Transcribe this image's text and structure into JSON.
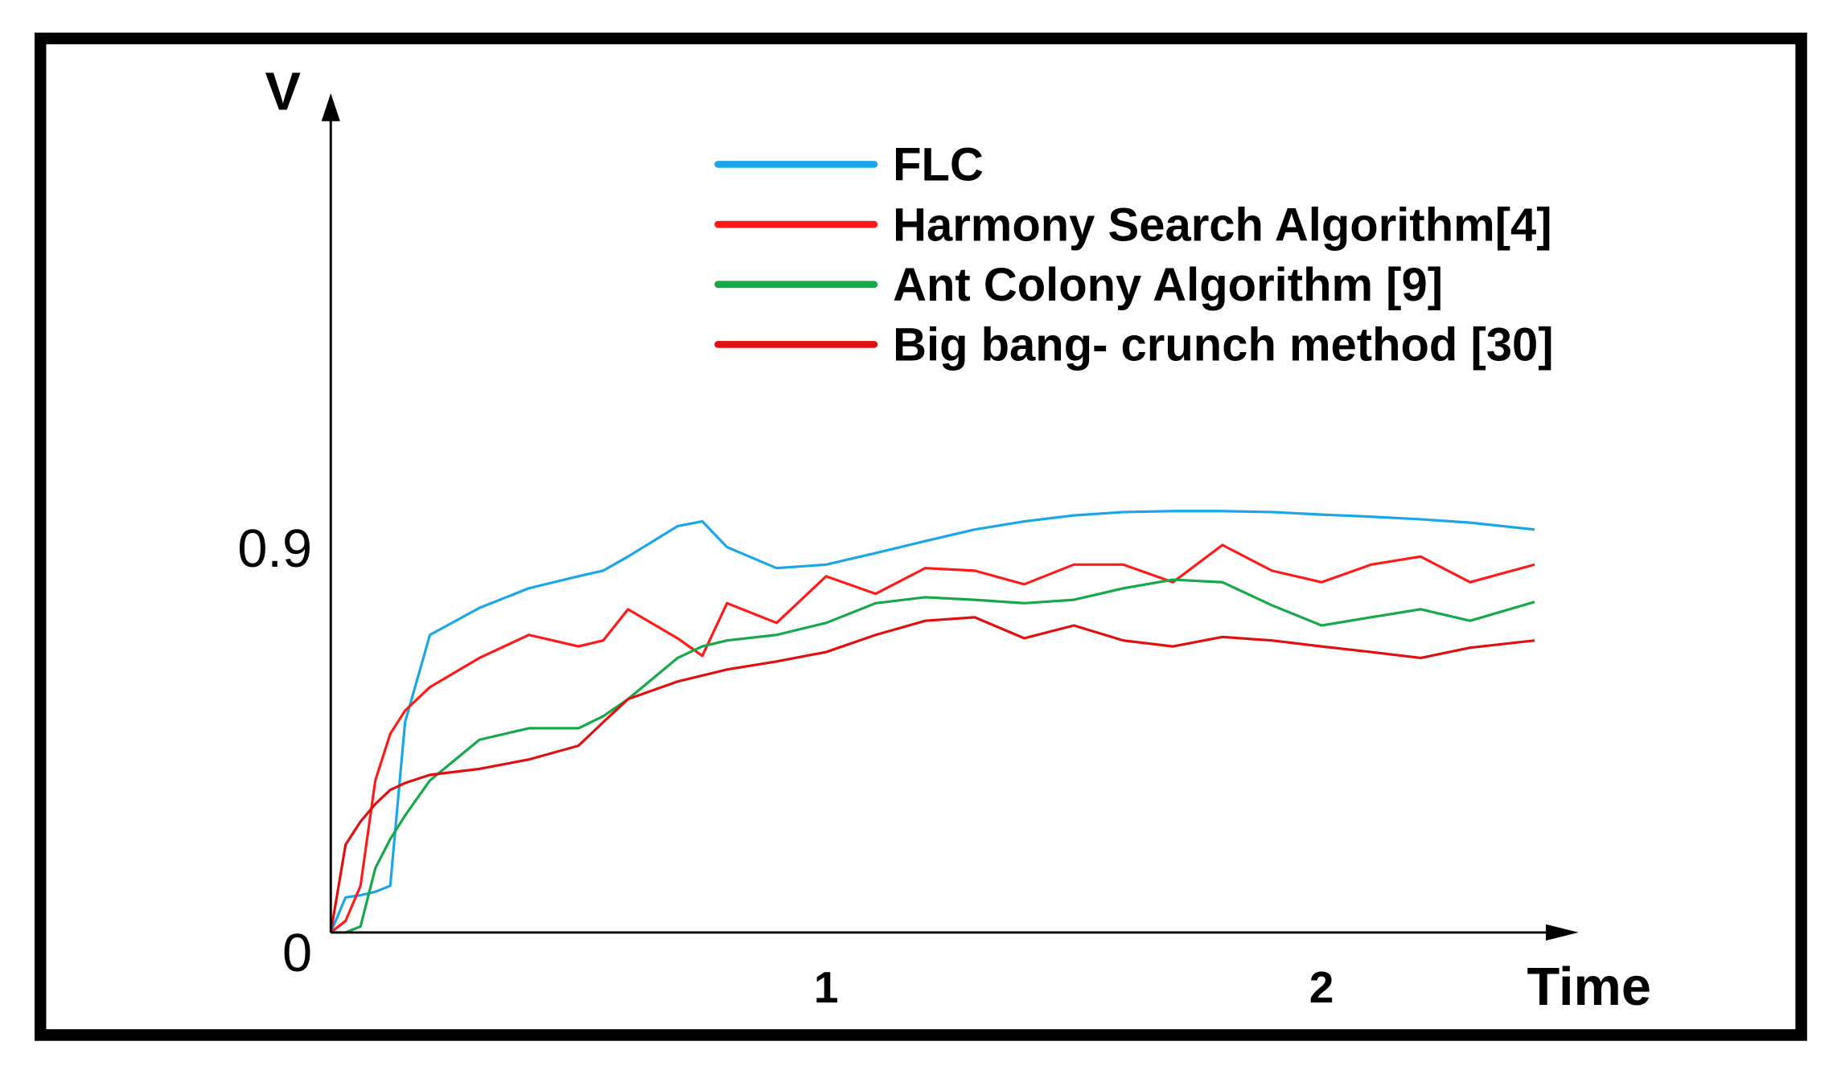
{
  "chart_data": {
    "type": "line",
    "y_axis_label": "V",
    "x_axis_label": "Time",
    "x": [
      0,
      0.03,
      0.06,
      0.09,
      0.12,
      0.15,
      0.2,
      0.3,
      0.4,
      0.5,
      0.55,
      0.6,
      0.7,
      0.75,
      0.8,
      0.9,
      1.0,
      1.1,
      1.2,
      1.3,
      1.4,
      1.5,
      1.6,
      1.7,
      1.8,
      1.9,
      2.0,
      2.1,
      2.2,
      2.3,
      2.43
    ],
    "series": [
      {
        "name": "FLC",
        "color": "#1aa6e8",
        "values": [
          0,
          0.082,
          0.087,
          0.095,
          0.109,
          0.491,
          0.695,
          0.758,
          0.804,
          0.832,
          0.845,
          0.878,
          0.949,
          0.96,
          0.9,
          0.851,
          0.859,
          0.886,
          0.914,
          0.941,
          0.96,
          0.974,
          0.982,
          0.984,
          0.984,
          0.982,
          0.976,
          0.971,
          0.965,
          0.957,
          0.941
        ]
      },
      {
        "name": "Harmony Search Algorithm[4]",
        "color": "#ff1a1a",
        "values": [
          0,
          0.027,
          0.109,
          0.355,
          0.464,
          0.518,
          0.573,
          0.641,
          0.695,
          0.668,
          0.682,
          0.755,
          0.687,
          0.646,
          0.769,
          0.723,
          0.832,
          0.791,
          0.851,
          0.845,
          0.813,
          0.859,
          0.859,
          0.818,
          0.905,
          0.845,
          0.818,
          0.859,
          0.878,
          0.818,
          0.859
        ]
      },
      {
        "name": "Ant Colony Algorithm [9]",
        "color": "#17a84a",
        "values": [
          0,
          0,
          0.014,
          0.15,
          0.218,
          0.273,
          0.355,
          0.45,
          0.477,
          0.477,
          0.505,
          0.545,
          0.641,
          0.668,
          0.682,
          0.695,
          0.723,
          0.769,
          0.783,
          0.777,
          0.769,
          0.777,
          0.804,
          0.824,
          0.818,
          0.764,
          0.717,
          0.736,
          0.755,
          0.728,
          0.772
        ]
      },
      {
        "name": "Big bang- crunch method [30]",
        "color": "#e01010",
        "values": [
          0,
          0.205,
          0.259,
          0.3,
          0.333,
          0.349,
          0.368,
          0.382,
          0.404,
          0.436,
          0.491,
          0.545,
          0.586,
          0.6,
          0.614,
          0.633,
          0.655,
          0.695,
          0.728,
          0.736,
          0.687,
          0.717,
          0.682,
          0.668,
          0.69,
          0.682,
          0.668,
          0.655,
          0.641,
          0.665,
          0.682
        ]
      }
    ],
    "xlim": [
      0,
      2.5
    ],
    "ylim": [
      0,
      1.96
    ],
    "xticks": [
      1,
      2
    ],
    "yticks": [
      0,
      0.9
    ],
    "grid": false,
    "legend_position": "top-right"
  }
}
